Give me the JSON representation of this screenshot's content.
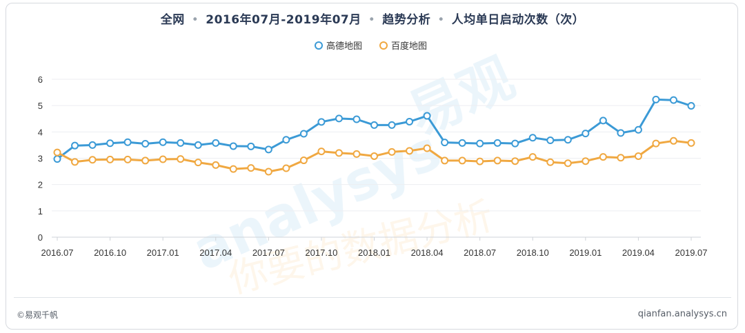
{
  "title": {
    "parts": [
      "全网",
      "2016年07月-2019年07月",
      "趋势分析",
      "人均单日启动次数（次）"
    ],
    "separator": "•"
  },
  "footer": {
    "left": "©易观千帆",
    "right": "qianfan.analysys.cn"
  },
  "watermark": {
    "brand_cn": "易观",
    "brand_en": "analysys",
    "slogan": "你要的数据分析"
  },
  "colors": {
    "series_1": "#3b9ad6",
    "series_2": "#f0a841",
    "grid": "#eceef1",
    "axis_text": "#333333"
  },
  "chart_data": {
    "type": "line",
    "x": [
      "2016.07",
      "2016.08",
      "2016.09",
      "2016.10",
      "2016.11",
      "2016.12",
      "2017.01",
      "2017.02",
      "2017.03",
      "2017.04",
      "2017.05",
      "2017.06",
      "2017.07",
      "2017.08",
      "2017.09",
      "2017.10",
      "2017.11",
      "2017.12",
      "2018.01",
      "2018.02",
      "2018.03",
      "2018.04",
      "2018.05",
      "2018.06",
      "2018.07",
      "2018.08",
      "2018.09",
      "2018.10",
      "2018.11",
      "2018.12",
      "2019.01",
      "2019.02",
      "2019.03",
      "2019.04",
      "2019.05",
      "2019.06",
      "2019.07"
    ],
    "x_tick_labels": [
      "2016.07",
      "2016.10",
      "2017.01",
      "2017.04",
      "2017.07",
      "2017.10",
      "2018.01",
      "2018.04",
      "2018.07",
      "2018.10",
      "2019.01",
      "2019.04",
      "2019.07"
    ],
    "series": [
      {
        "name": "高德地图",
        "values": [
          2.97,
          3.48,
          3.5,
          3.57,
          3.61,
          3.55,
          3.61,
          3.58,
          3.5,
          3.58,
          3.46,
          3.45,
          3.33,
          3.7,
          3.93,
          4.38,
          4.51,
          4.48,
          4.26,
          4.26,
          4.39,
          4.61,
          3.6,
          3.58,
          3.56,
          3.58,
          3.56,
          3.78,
          3.68,
          3.7,
          3.94,
          4.43,
          3.96,
          4.08,
          5.23,
          5.21,
          4.99
        ]
      },
      {
        "name": "百度地图",
        "values": [
          3.22,
          2.86,
          2.94,
          2.95,
          2.95,
          2.91,
          2.96,
          2.97,
          2.84,
          2.74,
          2.59,
          2.63,
          2.49,
          2.62,
          2.92,
          3.26,
          3.2,
          3.16,
          3.08,
          3.24,
          3.28,
          3.38,
          2.91,
          2.91,
          2.88,
          2.91,
          2.89,
          3.05,
          2.85,
          2.81,
          2.89,
          3.05,
          3.02,
          3.08,
          3.56,
          3.66,
          3.58
        ]
      }
    ],
    "y_ticks": [
      0,
      1,
      2,
      3,
      4,
      5,
      6
    ],
    "ylim": [
      0,
      6
    ],
    "grid": true,
    "legend_position": "top-center"
  }
}
